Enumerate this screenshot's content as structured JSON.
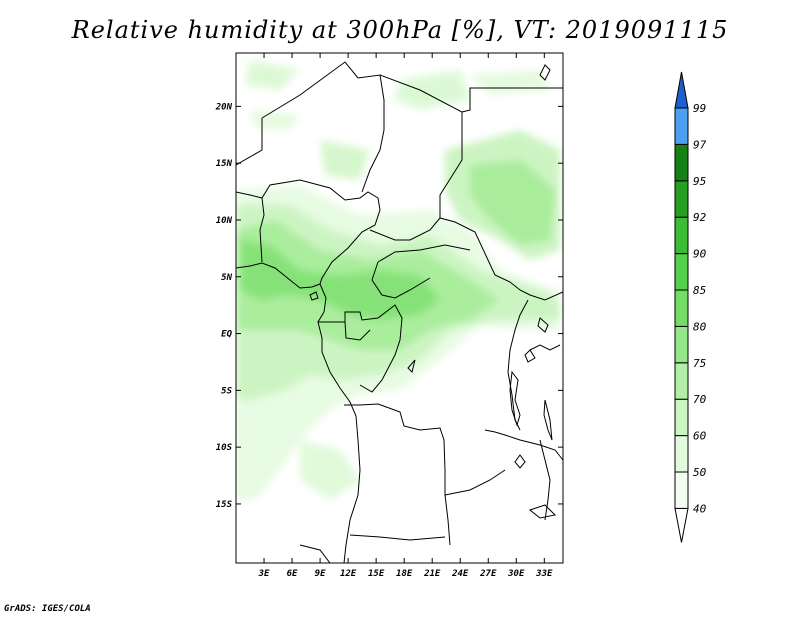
{
  "title": "Relative humidity at 300hPa [%], VT: 2019091115",
  "credit": "GrADS: IGES/COLA",
  "map": {
    "lat_ticks": [
      {
        "value": 20,
        "label": "20N"
      },
      {
        "value": 15,
        "label": "15N"
      },
      {
        "value": 10,
        "label": "10N"
      },
      {
        "value": 5,
        "label": "5N"
      },
      {
        "value": 0,
        "label": "EQ"
      },
      {
        "value": -5,
        "label": "5S"
      },
      {
        "value": -10,
        "label": "10S"
      },
      {
        "value": -15,
        "label": "15S"
      }
    ],
    "lon_ticks": [
      {
        "value": 3,
        "label": "3E"
      },
      {
        "value": 6,
        "label": "6E"
      },
      {
        "value": 9,
        "label": "9E"
      },
      {
        "value": 12,
        "label": "12E"
      },
      {
        "value": 15,
        "label": "15E"
      },
      {
        "value": 18,
        "label": "18E"
      },
      {
        "value": 21,
        "label": "21E"
      },
      {
        "value": 24,
        "label": "24E"
      },
      {
        "value": 27,
        "label": "27E"
      },
      {
        "value": 30,
        "label": "30E"
      },
      {
        "value": 33,
        "label": "33E"
      }
    ]
  },
  "colorbar": {
    "labels": [
      "40",
      "50",
      "60",
      "70",
      "75",
      "80",
      "85",
      "90",
      "92",
      "95",
      "97",
      "99"
    ],
    "colors": [
      "#f4fdf2",
      "#e3fbdc",
      "#cbf5c2",
      "#b1efa6",
      "#94e788",
      "#74dd68",
      "#55d04c",
      "#3cbd35",
      "#269f22",
      "#138113",
      "#4d9ff2",
      "#2f7fe3",
      "#1b60cc"
    ]
  }
}
